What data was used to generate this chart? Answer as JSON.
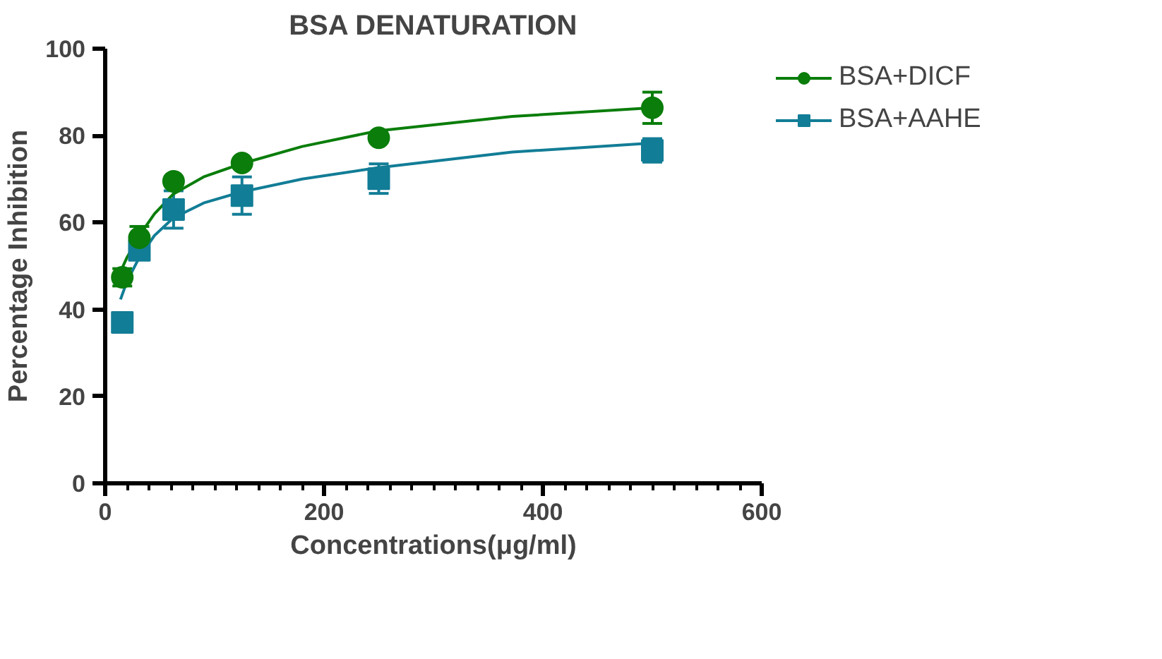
{
  "chart_data": {
    "type": "scatter",
    "title": "BSA DENATURATION",
    "xlabel": "Concentrations(μg/ml)",
    "ylabel": "Percentage Inhibition",
    "xlim": [
      0,
      600
    ],
    "ylim": [
      0,
      100
    ],
    "xticks": [
      0,
      200,
      400,
      600
    ],
    "yticks": [
      0,
      20,
      40,
      60,
      80,
      100
    ],
    "grid": false,
    "legend": "right",
    "series": [
      {
        "name": "BSA+DICF",
        "color": "#0a7d0a",
        "marker": "circle",
        "x": [
          15.625,
          31.25,
          62.5,
          125,
          250,
          500
        ],
        "values": [
          47.4,
          56.5,
          69.5,
          73.7,
          79.5,
          86.4
        ],
        "errors": [
          2,
          2.6,
          null,
          null,
          null,
          3.6
        ]
      },
      {
        "name": "BSA+AAHE",
        "color": "#127d96",
        "marker": "square",
        "x": [
          15.625,
          31.25,
          62.5,
          125,
          250,
          500
        ],
        "values": [
          37.0,
          53.6,
          63.0,
          66.2,
          70.1,
          76.6
        ],
        "errors": [
          null,
          null,
          4.3,
          4.3,
          3.4,
          2.7
        ]
      },
      {
        "type": "line",
        "color": "#0a7d0a",
        "x": [
          14,
          20,
          31.8,
          45,
          62,
          90,
          124,
          180,
          249,
          372,
          500
        ],
        "values": [
          48.7,
          52,
          57.2,
          62,
          66.5,
          70.5,
          73.5,
          77.5,
          81.1,
          84.4,
          86.4
        ]
      },
      {
        "type": "line",
        "color": "#127d96",
        "x": [
          14,
          20,
          31,
          45,
          62,
          90,
          124,
          180,
          249,
          372,
          500
        ],
        "values": [
          42.3,
          46.5,
          51.9,
          57,
          61,
          64.5,
          67,
          70,
          72.6,
          76.2,
          78.3
        ]
      }
    ]
  }
}
